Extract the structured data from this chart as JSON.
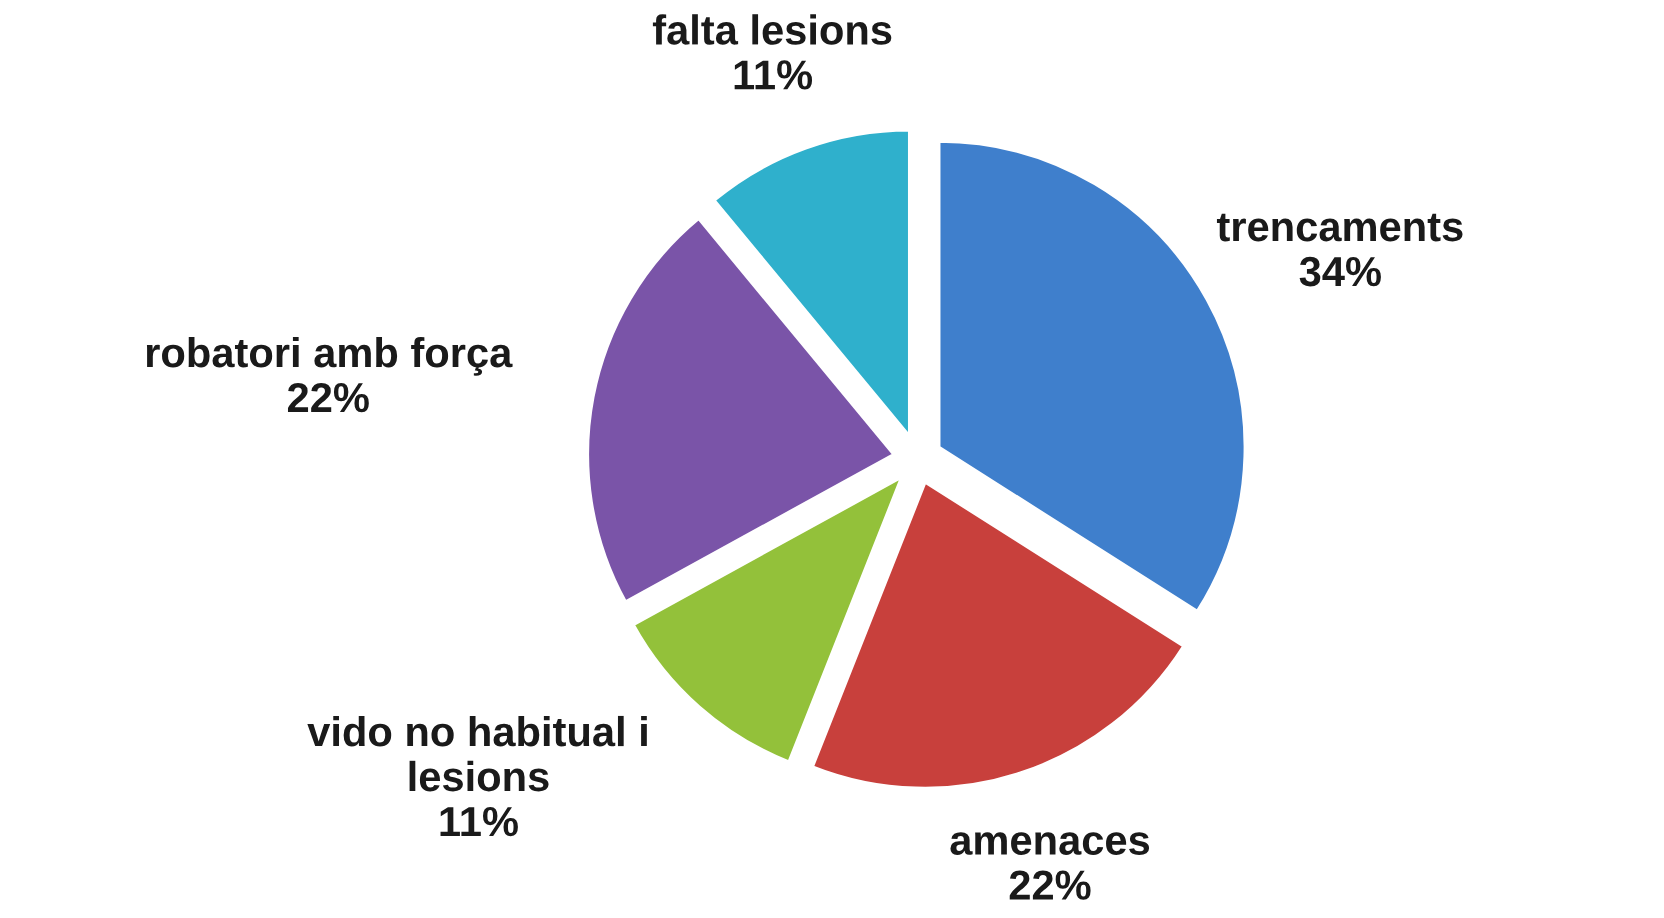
{
  "chart_data": {
    "type": "pie",
    "categories": [
      "trencaments",
      "amenaces",
      "vido no habitual i\nlesions",
      "robatori amb força",
      "falta lesions"
    ],
    "values": [
      34,
      22,
      11,
      22,
      11
    ],
    "value_labels": [
      "34%",
      "22%",
      "11%",
      "22%",
      "11%"
    ],
    "colors": [
      "#3f7fcc",
      "#c8403c",
      "#93c13a",
      "#7a54a8",
      "#2fb0cc"
    ]
  }
}
